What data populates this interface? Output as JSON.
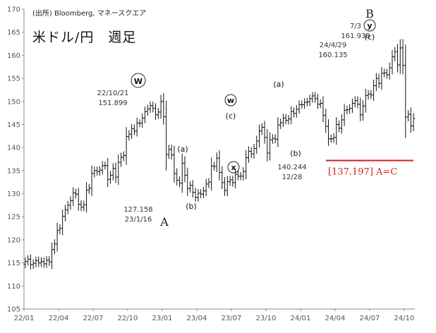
{
  "source": "(出所) Bloomberg, マネースクエア",
  "title": "米ドル/円　週足",
  "chart_data": {
    "type": "candlestick",
    "ylim": [
      105,
      170
    ],
    "yticks": [
      105,
      110,
      115,
      120,
      125,
      130,
      135,
      140,
      145,
      150,
      155,
      160,
      165,
      170
    ],
    "xtick_labels": [
      "22/01",
      "22/04",
      "22/07",
      "22/10",
      "23/01",
      "23/04",
      "23/07",
      "23/10",
      "24/01",
      "24/04",
      "24/07",
      "24/10"
    ],
    "weeks_total": 147,
    "weekly_close": [
      115.3,
      115.8,
      114.6,
      114.9,
      115.5,
      115.0,
      115.3,
      114.8,
      115.6,
      115.2,
      117.9,
      119.1,
      122.1,
      122.5,
      125.1,
      126.5,
      127.5,
      128.5,
      130.2,
      129.9,
      127.7,
      127.1,
      127.6,
      130.8,
      131.2,
      134.4,
      135.0,
      134.8,
      135.1,
      136.1,
      136.1,
      133.1,
      134.0,
      135.5,
      133.6,
      136.8,
      137.9,
      138.3,
      142.4,
      142.9,
      144.1,
      143.6,
      145.3,
      145.3,
      146.4,
      147.8,
      148.4,
      149.1,
      148.5,
      147.1,
      147.7,
      150.0,
      146.7,
      138.5,
      139.6,
      138.4,
      134.4,
      132.9,
      132.3,
      136.6,
      134.0,
      131.1,
      131.8,
      130.3,
      129.2,
      130.1,
      129.9,
      130.6,
      132.1,
      132.5,
      136.0,
      135.9,
      137.7,
      134.6,
      132.4,
      130.7,
      132.6,
      133.0,
      132.4,
      134.2,
      133.8,
      133.8,
      134.8,
      137.8,
      139.2,
      138.6,
      139.8,
      141.4,
      143.6,
      144.4,
      142.2,
      138.8,
      141.7,
      142.0,
      141.8,
      144.9,
      145.4,
      146.4,
      145.9,
      146.2,
      147.8,
      147.4,
      148.3,
      149.3,
      149.3,
      149.8,
      149.9,
      150.6,
      151.2,
      150.6,
      149.4,
      149.6,
      147.0,
      144.6,
      141.9,
      141.9,
      142.2,
      145.0,
      144.2,
      146.0,
      148.1,
      148.2,
      148.5,
      149.6,
      150.2,
      149.4,
      147.1,
      149.0,
      151.3,
      151.6,
      151.4,
      153.4,
      155.0,
      153.9,
      156.1,
      156.2,
      155.8,
      157.3,
      159.7,
      160.8,
      157.9,
      161.6,
      157.8,
      146.6,
      147.2,
      144.7,
      146.3
    ],
    "annotations": [
      {
        "text": "22/10/21",
        "kind": "label"
      },
      {
        "text": "151.899",
        "kind": "label"
      },
      {
        "text": "127.158",
        "kind": "label"
      },
      {
        "text": "23/1/16",
        "kind": "label"
      },
      {
        "text": "140.244",
        "kind": "label"
      },
      {
        "text": "12/28",
        "kind": "label"
      },
      {
        "text": "24/4/29",
        "kind": "label"
      },
      {
        "text": "160.135",
        "kind": "label"
      },
      {
        "text": "7/3",
        "kind": "label"
      },
      {
        "text": "161.938",
        "kind": "label"
      }
    ],
    "wave_labels": [
      {
        "text": "W",
        "circled": true
      },
      {
        "text": "A",
        "circled": false,
        "big": true
      },
      {
        "text": "(a)",
        "circled": false
      },
      {
        "text": "(b)",
        "circled": false
      },
      {
        "text": "(c)",
        "circled": false
      },
      {
        "text": "w",
        "circled": true
      },
      {
        "text": "x",
        "circled": true
      },
      {
        "text": "(a)",
        "circled": false
      },
      {
        "text": "(b)",
        "circled": false
      },
      {
        "text": "B",
        "circled": false,
        "big": true
      },
      {
        "text": "y",
        "circled": true
      },
      {
        "text": "(c)",
        "circled": false
      }
    ],
    "target_level": 137.197,
    "target_text": "[137.197] A=C",
    "target_color": "#d21f1f"
  }
}
